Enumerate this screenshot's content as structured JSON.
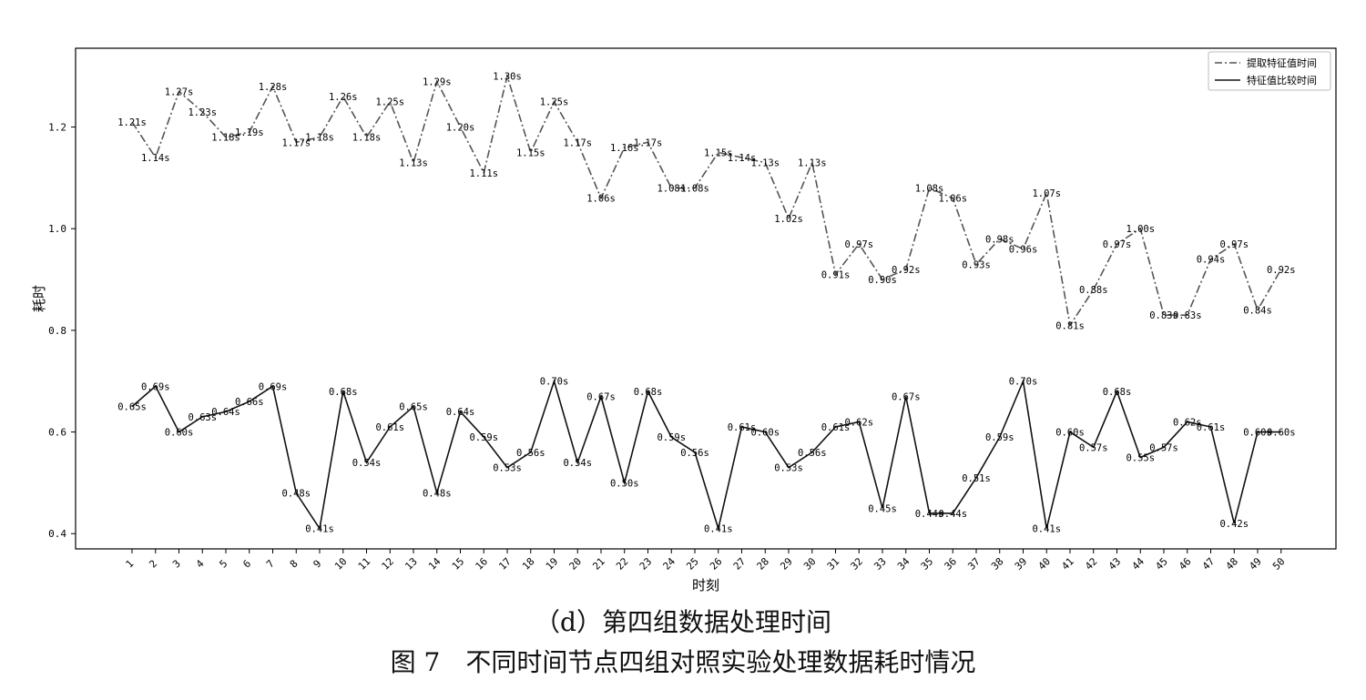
{
  "chart_data": {
    "type": "line",
    "xlabel": "时刻",
    "ylabel": "耗时",
    "categories": [
      "1",
      "2",
      "3",
      "4",
      "5",
      "6",
      "7",
      "8",
      "9",
      "10",
      "11",
      "12",
      "13",
      "14",
      "15",
      "16",
      "17",
      "18",
      "19",
      "20",
      "21",
      "22",
      "23",
      "24",
      "25",
      "26",
      "27",
      "28",
      "29",
      "30",
      "31",
      "32",
      "33",
      "34",
      "35",
      "36",
      "37",
      "38",
      "39",
      "40",
      "41",
      "42",
      "43",
      "44",
      "45",
      "46",
      "47",
      "48",
      "49",
      "50"
    ],
    "yticks": [
      "0.4",
      "0.6",
      "0.8",
      "1.0",
      "1.2"
    ],
    "ylim": [
      0.37,
      1.355
    ],
    "grid": false,
    "legend_position": "top-right",
    "series": [
      {
        "name": "提取特征值时间",
        "style": "dash-dot",
        "color": "#555555",
        "values": [
          1.21,
          1.14,
          1.27,
          1.23,
          1.18,
          1.19,
          1.28,
          1.17,
          1.18,
          1.26,
          1.18,
          1.25,
          1.13,
          1.29,
          1.2,
          1.11,
          1.3,
          1.15,
          1.25,
          1.17,
          1.06,
          1.16,
          1.17,
          1.08,
          1.08,
          1.15,
          1.14,
          1.13,
          1.02,
          1.13,
          0.91,
          0.97,
          0.9,
          0.92,
          1.08,
          1.06,
          0.93,
          0.98,
          0.96,
          1.07,
          0.81,
          0.88,
          0.97,
          1.0,
          0.83,
          0.83,
          0.94,
          0.97,
          0.84,
          0.92
        ],
        "labels": [
          "1.21s",
          "1.14s",
          "1.27s",
          "1.23s",
          "1.18s",
          "1.19s",
          "1.28s",
          "1.17s",
          "1.18s",
          "1.26s",
          "1.18s",
          "1.25s",
          "1.13s",
          "1.29s",
          "1.20s",
          "1.11s",
          "1.30s",
          "1.15s",
          "1.25s",
          "1.17s",
          "1.06s",
          "1.16s",
          "1.17s",
          "1.08s",
          "1.08s",
          "1.15s",
          "1.14s",
          "1.13s",
          "1.02s",
          "1.13s",
          "0.91s",
          "0.97s",
          "0.90s",
          "0.92s",
          "1.08s",
          "1.06s",
          "0.93s",
          "0.98s",
          "0.96s",
          "1.07s",
          "0.81s",
          "0.88s",
          "0.97s",
          "1.00s",
          "0.83s",
          "0.83s",
          "0.94s",
          "0.97s",
          "0.84s",
          "0.92s"
        ]
      },
      {
        "name": "特征值比较时间",
        "style": "solid",
        "color": "#111111",
        "values": [
          0.65,
          0.69,
          0.6,
          0.63,
          0.64,
          0.66,
          0.69,
          0.48,
          0.41,
          0.68,
          0.54,
          0.61,
          0.65,
          0.48,
          0.64,
          0.59,
          0.53,
          0.56,
          0.7,
          0.54,
          0.67,
          0.5,
          0.68,
          0.59,
          0.56,
          0.41,
          0.61,
          0.6,
          0.53,
          0.56,
          0.61,
          0.62,
          0.45,
          0.67,
          0.44,
          0.44,
          0.51,
          0.59,
          0.7,
          0.41,
          0.6,
          0.57,
          0.68,
          0.55,
          0.57,
          0.62,
          0.61,
          0.42,
          0.6,
          0.6
        ],
        "labels": [
          "0.65s",
          "0.69s",
          "0.60s",
          "0.63s",
          "0.64s",
          "0.66s",
          "0.69s",
          "0.48s",
          "0.41s",
          "0.68s",
          "0.54s",
          "0.61s",
          "0.65s",
          "0.48s",
          "0.64s",
          "0.59s",
          "0.53s",
          "0.56s",
          "0.70s",
          "0.54s",
          "0.67s",
          "0.50s",
          "0.68s",
          "0.59s",
          "0.56s",
          "0.41s",
          "0.61s",
          "0.60s",
          "0.53s",
          "0.56s",
          "0.61s",
          "0.62s",
          "0.45s",
          "0.67s",
          "0.44s",
          "0.44s",
          "0.51s",
          "0.59s",
          "0.70s",
          "0.41s",
          "0.60s",
          "0.57s",
          "0.68s",
          "0.55s",
          "0.57s",
          "0.62s",
          "0.61s",
          "0.42s",
          "0.60s",
          "0.60s"
        ]
      }
    ]
  },
  "captions": {
    "sub": "（d）第四组数据处理时间",
    "figure": "图 7　不同时间节点四组对照实验处理数据耗时情况"
  }
}
